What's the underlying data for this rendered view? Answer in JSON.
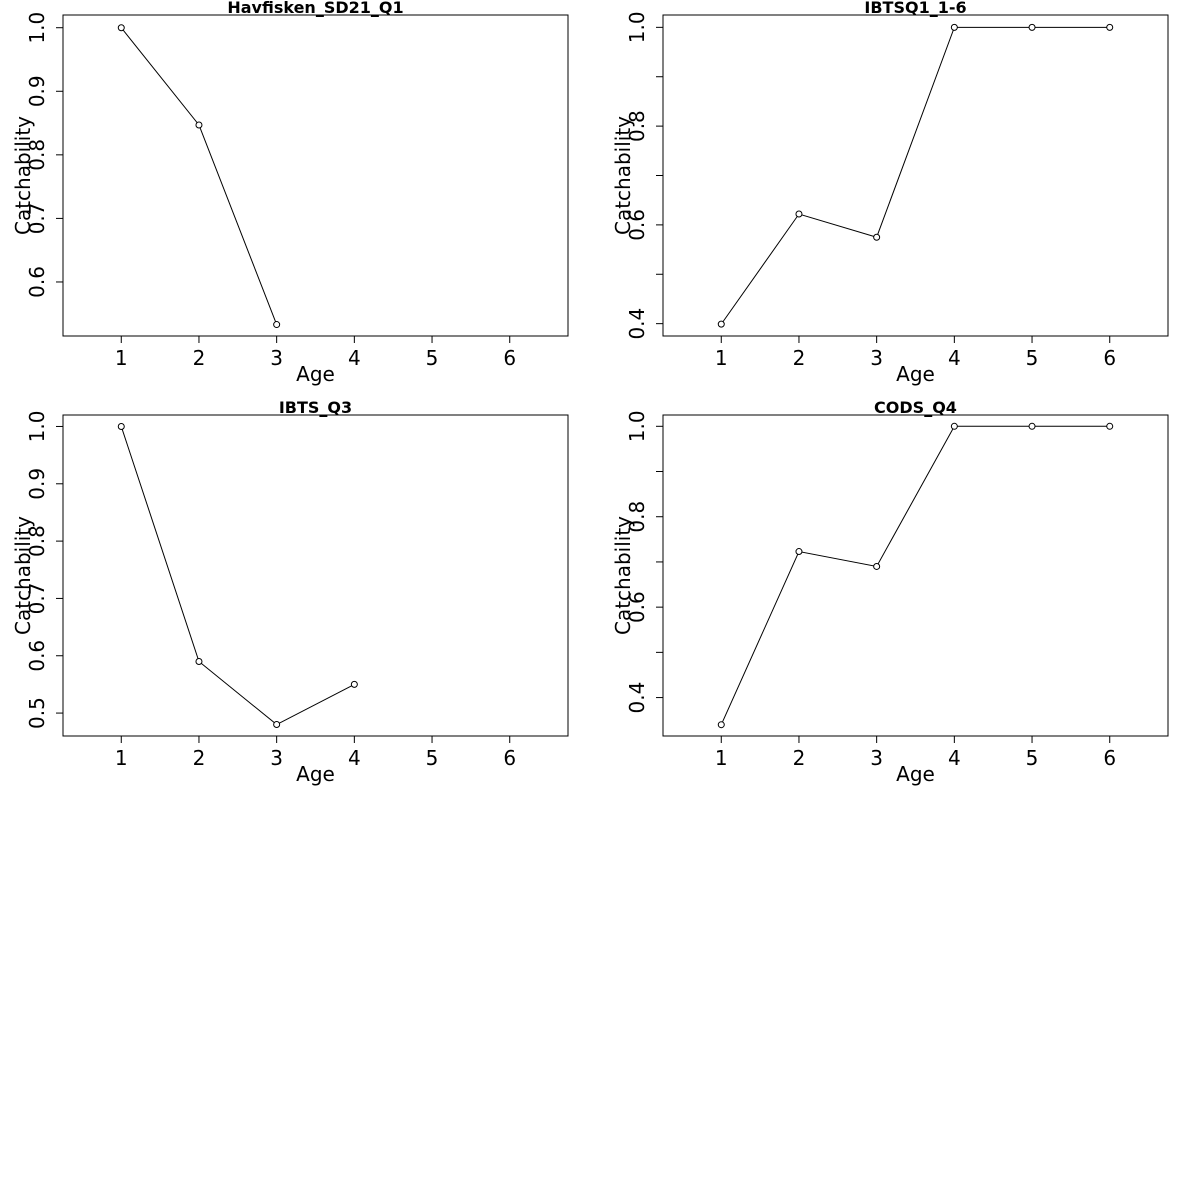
{
  "chart_data": [
    {
      "type": "line",
      "title": "Havfisken_SD21_Q1",
      "xlabel": "Age",
      "ylabel": "Catchability",
      "xlim": [
        0.25,
        6.75
      ],
      "ylim": [
        0.515,
        1.02
      ],
      "xticks": [
        1,
        2,
        3,
        4,
        5,
        6
      ],
      "yticks": [
        0.6,
        0.7,
        0.8,
        0.9,
        1.0
      ],
      "yticklabels": [
        "0.6",
        "0.7",
        "0.8",
        "0.9",
        "1.0"
      ],
      "x": [
        1,
        2,
        3
      ],
      "y": [
        1.0,
        0.847,
        0.533
      ]
    },
    {
      "type": "line",
      "title": "IBTSQ1_1-6",
      "xlabel": "Age",
      "ylabel": "Catchability",
      "xlim": [
        0.25,
        6.75
      ],
      "ylim": [
        0.375,
        1.025
      ],
      "xticks": [
        1,
        2,
        3,
        4,
        5,
        6
      ],
      "yticks": [
        0.4,
        0.5,
        0.6,
        0.7,
        0.8,
        0.9,
        1.0
      ],
      "yticklabels": [
        "0.4",
        "",
        "0.6",
        "",
        "0.8",
        "",
        "1.0"
      ],
      "x": [
        1,
        2,
        3,
        4,
        5,
        6
      ],
      "y": [
        0.399,
        0.622,
        0.575,
        1.0,
        1.0,
        1.0
      ]
    },
    {
      "type": "line",
      "title": "IBTS_Q3",
      "xlabel": "Age",
      "ylabel": "Catchability",
      "xlim": [
        0.25,
        6.75
      ],
      "ylim": [
        0.46,
        1.02
      ],
      "xticks": [
        1,
        2,
        3,
        4,
        5,
        6
      ],
      "yticks": [
        0.5,
        0.6,
        0.7,
        0.8,
        0.9,
        1.0
      ],
      "yticklabels": [
        "0.5",
        "0.6",
        "0.7",
        "0.8",
        "0.9",
        "1.0"
      ],
      "x": [
        1,
        2,
        3,
        4
      ],
      "y": [
        1.0,
        0.59,
        0.48,
        0.55
      ]
    },
    {
      "type": "line",
      "title": "CODS_Q4",
      "xlabel": "Age",
      "ylabel": "Catchability",
      "xlim": [
        0.25,
        6.75
      ],
      "ylim": [
        0.315,
        1.025
      ],
      "xticks": [
        1,
        2,
        3,
        4,
        5,
        6
      ],
      "yticks": [
        0.4,
        0.5,
        0.6,
        0.7,
        0.8,
        0.9,
        1.0
      ],
      "yticklabels": [
        "0.4",
        "",
        "0.6",
        "",
        "0.8",
        "",
        "1.0"
      ],
      "x": [
        1,
        2,
        3,
        4,
        5,
        6
      ],
      "y": [
        0.34,
        0.723,
        0.69,
        1.0,
        1.0,
        1.0
      ]
    }
  ]
}
